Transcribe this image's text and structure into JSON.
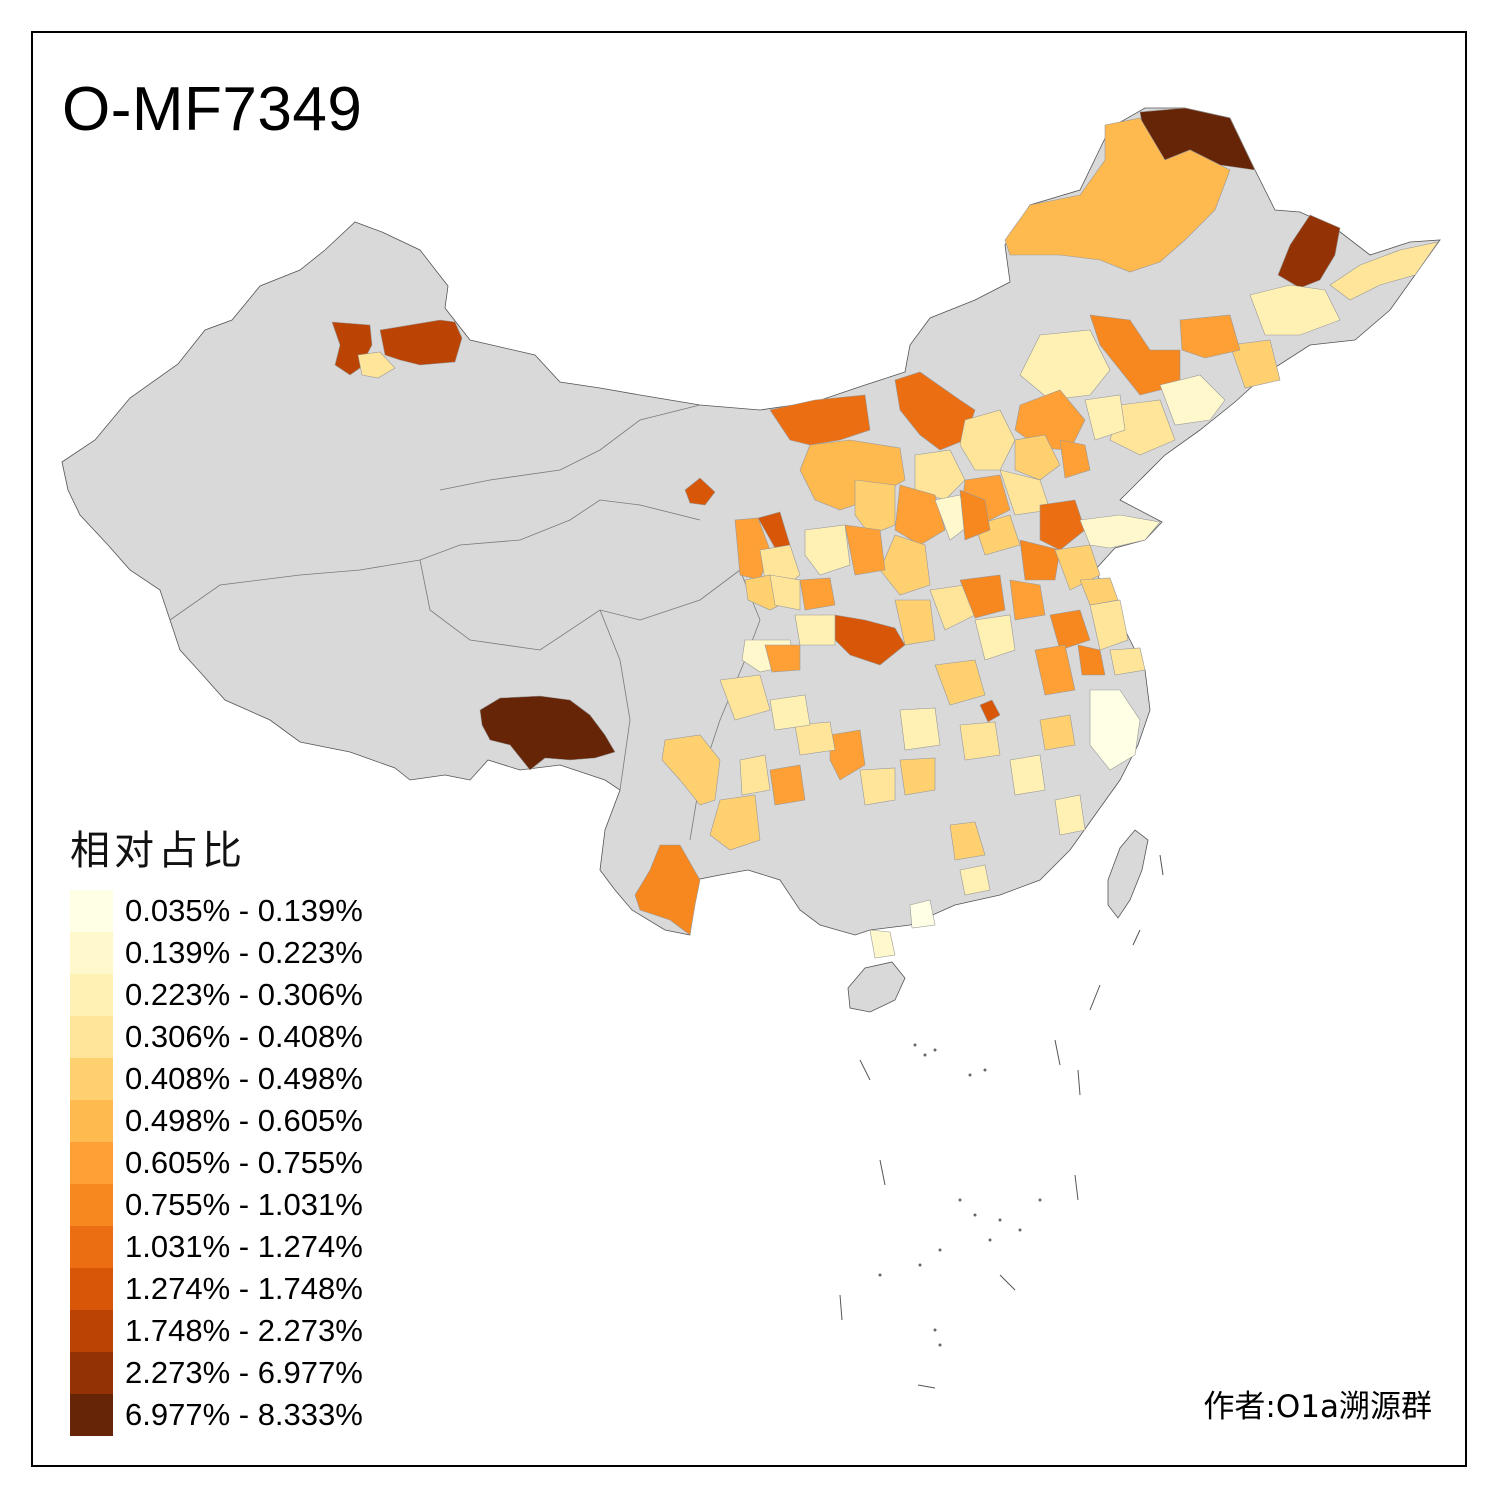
{
  "title": "O-MF7349",
  "legend": {
    "title": "相对占比",
    "items": [
      {
        "label": "0.035% - 0.139%",
        "color": "#ffffe5"
      },
      {
        "label": "0.139% - 0.223%",
        "color": "#fff8cd"
      },
      {
        "label": "0.223% - 0.306%",
        "color": "#fff0b3"
      },
      {
        "label": "0.306% - 0.408%",
        "color": "#fee59a"
      },
      {
        "label": "0.408% - 0.498%",
        "color": "#fed070"
      },
      {
        "label": "0.498% - 0.605%",
        "color": "#feb94f"
      },
      {
        "label": "0.605% - 0.755%",
        "color": "#fea035"
      },
      {
        "label": "0.755% - 1.031%",
        "color": "#f7871f"
      },
      {
        "label": "1.031% - 1.274%",
        "color": "#eb6e12"
      },
      {
        "label": "1.274% - 1.748%",
        "color": "#d75607"
      },
      {
        "label": "1.748% - 2.273%",
        "color": "#bb4304"
      },
      {
        "label": "2.273% - 6.977%",
        "color": "#933204"
      },
      {
        "label": "6.977% - 8.333%",
        "color": "#662506"
      }
    ]
  },
  "author": "作者:O1a溯源群",
  "base_color": "#d9d9d9"
}
